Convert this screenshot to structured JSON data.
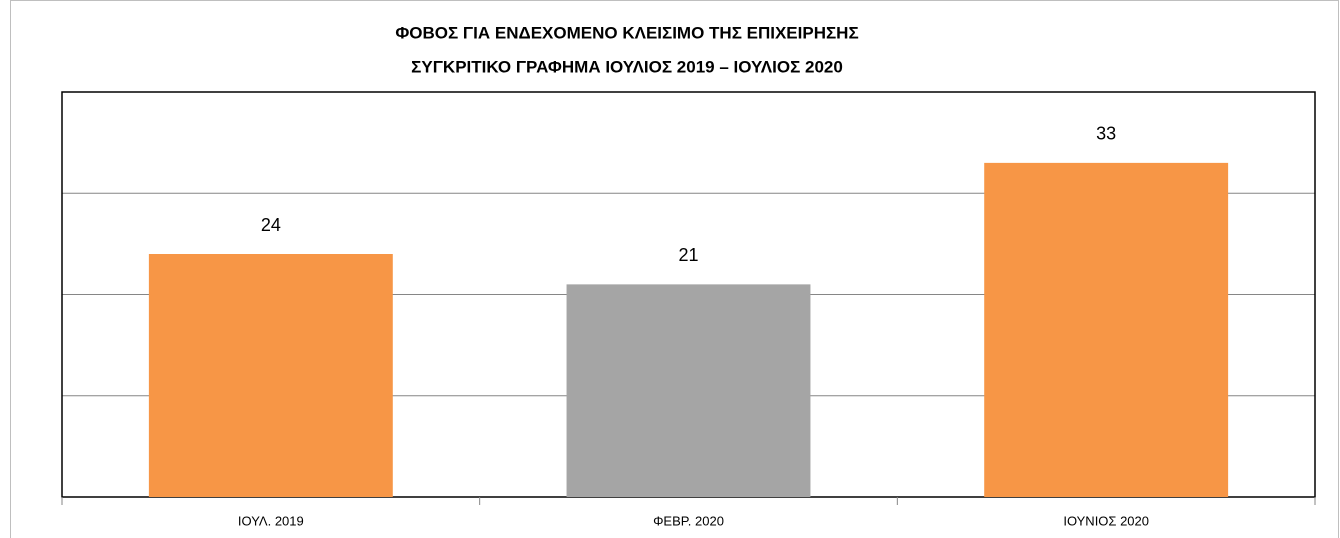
{
  "chart_data": {
    "type": "bar",
    "title": [
      "ΦΟΒΟΣ ΓΙΑ ΕΝΔΕΧΟΜΕΝΟ ΚΛΕΙΣΙΜΟ ΤΗΣ ΕΠΙΧΕΙΡΗΣΗΣ",
      "ΣΥΓΚΡΙΤΙΚΟ ΓΡΑΦΗΜΑ ΙΟΥΛΙΟΣ 2019 – ΙΟΥΛΙΟΣ 2020"
    ],
    "categories": [
      "ΙΟΥΛ. 2019",
      "ΦΕΒΡ. 2020",
      "ΙΟΥΝΙΟΣ 2020"
    ],
    "values": [
      24,
      21,
      33
    ],
    "colors": [
      "#f79646",
      "#a5a5a5",
      "#f79646"
    ],
    "ylim": [
      0,
      40
    ],
    "yticks": [
      0,
      10,
      20,
      30,
      40
    ],
    "grid": true
  }
}
